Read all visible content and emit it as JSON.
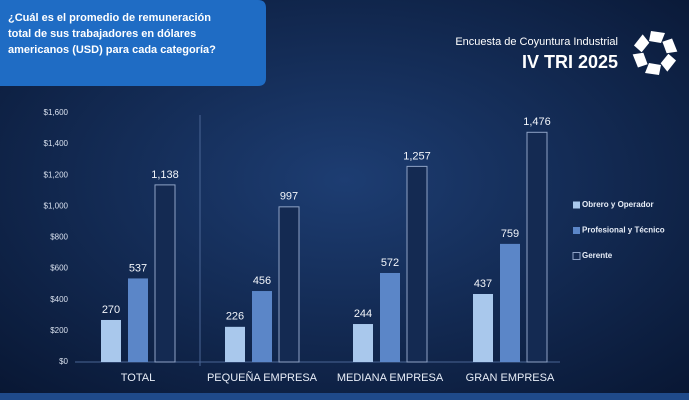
{
  "chart_data": {
    "type": "bar",
    "title_lines": [
      "¿Cuál es el promedio de remuneración",
      "total de sus trabajadores en dólares",
      "americanos (USD) para cada categoría?"
    ],
    "header": [
      "Encuesta de Coyuntura Industrial",
      "IV TRI 2025"
    ],
    "categories": [
      "TOTAL",
      "PEQUEÑA EMPRESA",
      "MEDIANA EMPRESA",
      "GRAN EMPRESA"
    ],
    "series": [
      {
        "name": "Obrero y Operador",
        "color": "#a9c8ec",
        "values": [
          270,
          226,
          244,
          437
        ],
        "value_labels": [
          "270",
          "226",
          "244",
          "437"
        ]
      },
      {
        "name": "Profesional  y Técnico",
        "color": "#5b86c8",
        "values": [
          537,
          456,
          572,
          759
        ],
        "value_labels": [
          "537",
          "456",
          "572",
          "759"
        ]
      },
      {
        "name": "Gerente",
        "color": "#142a52",
        "values": [
          1138,
          997,
          1257,
          1476
        ],
        "value_labels": [
          "1,138",
          "997",
          "1,257",
          "1,476"
        ]
      }
    ],
    "ylim": [
      0,
      1600
    ],
    "yticks": [
      {
        "value": 0,
        "label": "$0"
      },
      {
        "value": 200,
        "label": "$200"
      },
      {
        "value": 400,
        "label": "$400"
      },
      {
        "value": 600,
        "label": "$600"
      },
      {
        "value": 800,
        "label": "$800"
      },
      {
        "value": 1000,
        "label": "$1,000"
      },
      {
        "value": 1200,
        "label": "$1,200"
      },
      {
        "value": 1400,
        "label": "$1,400"
      },
      {
        "value": 1600,
        "label": "$1,600"
      }
    ],
    "grid": false,
    "legend": "right"
  }
}
